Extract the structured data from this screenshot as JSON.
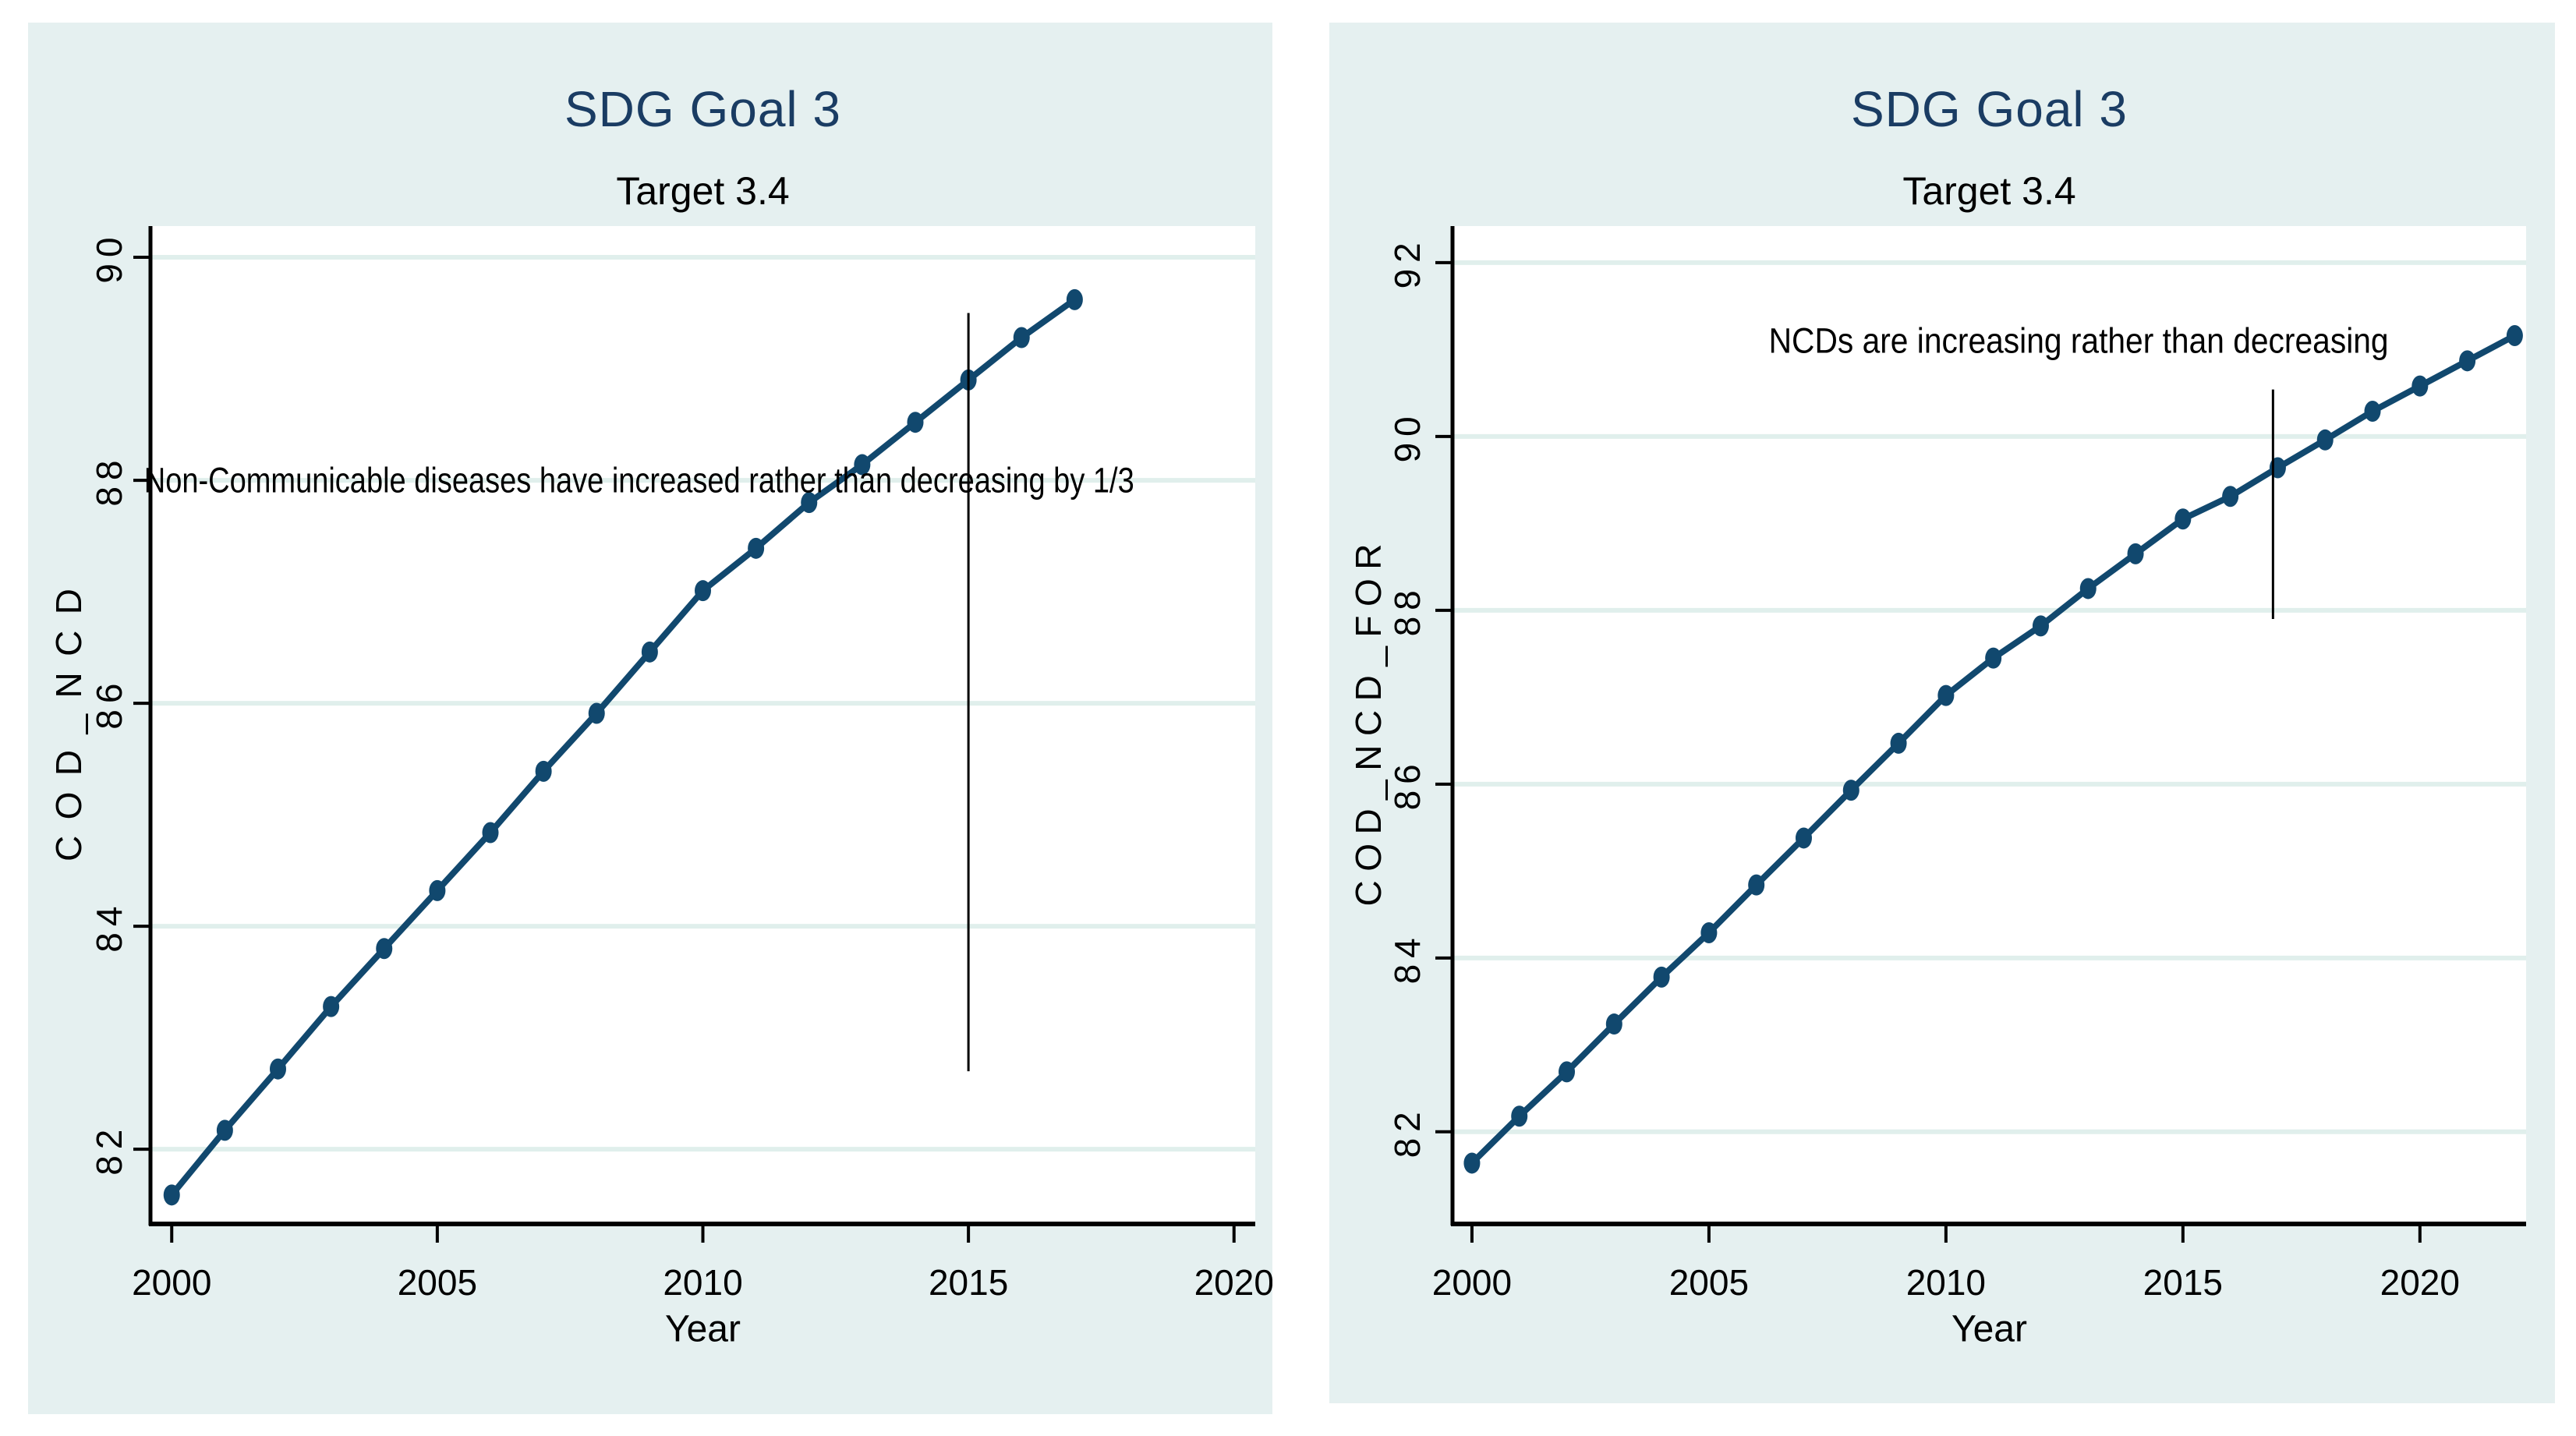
{
  "colors": {
    "page_bg": "#ffffff",
    "panel_bg": "#e5f0f0",
    "plot_bg": "#ffffff",
    "grid": "#e0efec",
    "axis": "#000000",
    "series": "#11486e",
    "title": "#1a3c63",
    "text": "#000000"
  },
  "chart_data": [
    {
      "type": "line",
      "title": "SDG Goal 3",
      "subtitle": "Target 3.4",
      "xlabel": "Year",
      "ylabel": "COD_NCD",
      "x_ticks": [
        2000,
        2005,
        2010,
        2015,
        2020
      ],
      "y_ticks": [
        82,
        84,
        86,
        88,
        90
      ],
      "xlim": [
        1999.6,
        2020.4
      ],
      "ylim": [
        81.33,
        90.28
      ],
      "grid": true,
      "legend": "none",
      "annotation": {
        "text": "Non-Communicable diseases have increased rather than decreasing by 1/3",
        "x": 2008.8,
        "y": 88,
        "max_width": 1270
      },
      "vline": {
        "x": 2015,
        "y_from": 82.7,
        "y_to": 89.5
      },
      "series": [
        {
          "name": "COD_NCD",
          "x": [
            2000,
            2001,
            2002,
            2003,
            2004,
            2005,
            2006,
            2007,
            2008,
            2009,
            2010,
            2011,
            2012,
            2013,
            2014,
            2015,
            2016,
            2017
          ],
          "y": [
            81.59,
            82.17,
            82.72,
            83.28,
            83.8,
            84.32,
            84.84,
            85.39,
            85.91,
            86.46,
            87.01,
            87.39,
            87.8,
            88.14,
            88.52,
            88.9,
            89.28,
            89.62
          ]
        }
      ]
    },
    {
      "type": "line",
      "title": "SDG Goal 3",
      "subtitle": "Target 3.4",
      "xlabel": "Year",
      "ylabel": "COD_NCD_FOR",
      "x_ticks": [
        2000,
        2005,
        2010,
        2015,
        2020
      ],
      "y_ticks": [
        82,
        84,
        86,
        88,
        90,
        92
      ],
      "xlim": [
        1999.59,
        2022.24
      ],
      "ylim": [
        80.94,
        92.42
      ],
      "grid": true,
      "legend": "none",
      "annotation": {
        "text": "NCDs are increasing rather than decreasing",
        "x": 2012.8,
        "y": 91.1,
        "max_width": 795
      },
      "vline": {
        "x": 2016.9,
        "y_from": 87.9,
        "y_to": 90.54
      },
      "series": [
        {
          "name": "COD_NCD_FOR",
          "x": [
            2000,
            2001,
            2002,
            2003,
            2004,
            2005,
            2006,
            2007,
            2008,
            2009,
            2010,
            2011,
            2012,
            2013,
            2014,
            2015,
            2016,
            2017,
            2018,
            2019,
            2020,
            2021,
            2022
          ],
          "y": [
            81.64,
            82.18,
            82.69,
            83.24,
            83.78,
            84.29,
            84.84,
            85.38,
            85.93,
            86.47,
            87.02,
            87.45,
            87.82,
            88.25,
            88.65,
            89.05,
            89.31,
            89.64,
            89.96,
            90.29,
            90.58,
            90.87,
            91.16
          ]
        }
      ]
    }
  ]
}
